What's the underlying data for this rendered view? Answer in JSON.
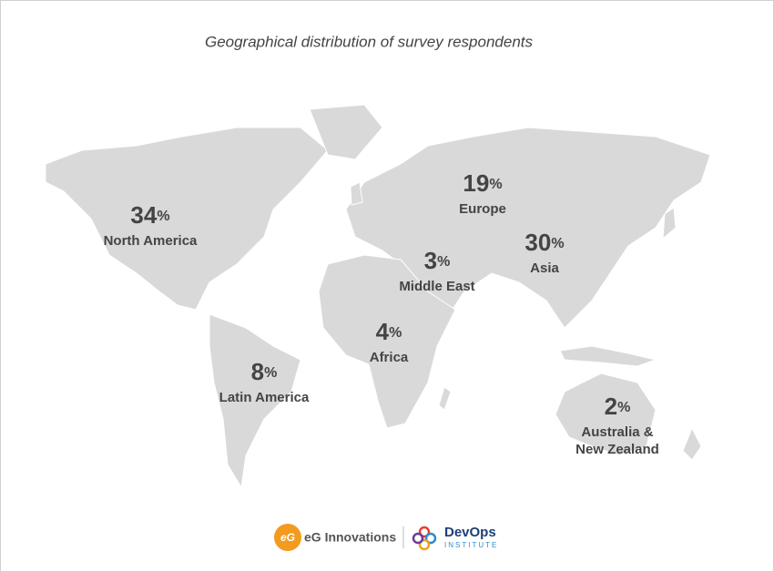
{
  "title": "Geographical distribution of survey respondents",
  "unit": "%",
  "regions": [
    {
      "label_lines": [
        "North America"
      ],
      "value": 34
    },
    {
      "label_lines": [
        "Europe"
      ],
      "value": 19
    },
    {
      "label_lines": [
        "Asia"
      ],
      "value": 30
    },
    {
      "label_lines": [
        "Middle East"
      ],
      "value": 3
    },
    {
      "label_lines": [
        "Africa"
      ],
      "value": 4
    },
    {
      "label_lines": [
        "Latin America"
      ],
      "value": 8
    },
    {
      "label_lines": [
        "Australia &",
        "New Zealand"
      ],
      "value": 2
    }
  ],
  "footer": {
    "eg_mark": "eG",
    "eg_name": "eG Innovations",
    "devops_name": "DevOps",
    "devops_sub": "INSTITUTE"
  }
}
